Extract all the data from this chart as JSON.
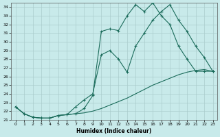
{
  "xlabel": "Humidex (Indice chaleur)",
  "xlim": [
    -0.5,
    23.5
  ],
  "ylim": [
    21,
    34.5
  ],
  "yticks": [
    21,
    22,
    23,
    24,
    25,
    26,
    27,
    28,
    29,
    30,
    31,
    32,
    33,
    34
  ],
  "xticks": [
    0,
    1,
    2,
    3,
    4,
    5,
    6,
    7,
    8,
    9,
    10,
    11,
    12,
    13,
    14,
    15,
    16,
    17,
    18,
    19,
    20,
    21,
    22,
    23
  ],
  "background_color": "#c8eaea",
  "grid_color": "#aacccc",
  "line_color": "#1a6b5a",
  "line1_x": [
    0,
    1,
    2,
    3,
    4,
    5,
    6,
    7,
    8,
    9,
    10,
    11,
    12,
    13,
    14,
    15,
    16,
    17,
    18,
    19,
    20,
    21,
    22,
    23
  ],
  "line1_y": [
    22.5,
    21.7,
    21.3,
    21.2,
    21.2,
    21.5,
    21.6,
    21.7,
    21.8,
    22.0,
    22.3,
    22.7,
    23.1,
    23.5,
    24.0,
    24.5,
    25.0,
    25.4,
    25.8,
    26.2,
    26.5,
    26.7,
    26.8,
    26.6
  ],
  "line2_x": [
    0,
    1,
    2,
    3,
    4,
    5,
    6,
    7,
    8,
    9,
    10,
    11,
    12,
    13,
    14,
    15,
    16,
    17,
    18,
    19,
    20,
    21,
    22,
    23
  ],
  "line2_y": [
    22.5,
    21.7,
    21.3,
    21.2,
    21.2,
    21.5,
    21.6,
    22.5,
    23.3,
    24.0,
    28.5,
    29.0,
    28.0,
    26.5,
    29.5,
    31.0,
    32.5,
    33.5,
    34.3,
    32.5,
    31.2,
    29.5,
    28.2,
    26.6
  ],
  "line3_x": [
    0,
    1,
    2,
    3,
    4,
    5,
    6,
    7,
    8,
    9,
    10,
    11,
    12,
    13,
    14,
    15,
    16,
    17,
    18,
    19,
    20,
    21,
    22,
    23
  ],
  "line3_y": [
    22.5,
    21.7,
    21.3,
    21.2,
    21.2,
    21.5,
    21.6,
    21.7,
    22.3,
    23.8,
    31.2,
    31.5,
    31.3,
    33.0,
    34.3,
    33.5,
    34.5,
    33.0,
    32.0,
    29.5,
    28.0,
    26.6,
    26.6,
    26.6
  ]
}
